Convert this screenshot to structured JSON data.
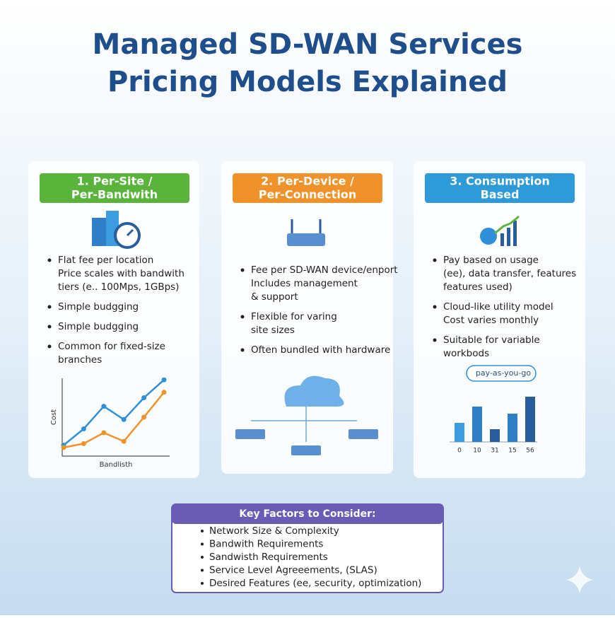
{
  "header": {
    "title_lines": [
      "Managed SD-WAN Services",
      "Pricing Models Explained"
    ]
  },
  "cards": [
    {
      "title_lines": [
        "1. Per-Site /",
        "Per-Bandwith"
      ],
      "color": "#5ab43c",
      "bullets": [
        [
          "Flat fee per location",
          "Price scales with bandwith",
          "tiers (e.. 100Mps, 1GBps)"
        ],
        [
          "Simple budgging"
        ],
        [
          "Simple budgging"
        ],
        [
          "Common for fixed-size",
          "branches"
        ]
      ],
      "chart": {
        "type": "line",
        "xlabel": "Bandlisth",
        "ylabel": "Cost",
        "ylim": [
          0,
          10
        ],
        "series": [
          {
            "color": "#2f8fd8",
            "values": [
              1.4,
              3.5,
              6.4,
              4.7,
              7.5,
              9.8
            ]
          },
          {
            "color": "#f0922a",
            "values": [
              1.1,
              1.6,
              3,
              1.9,
              5,
              8.2
            ]
          }
        ]
      }
    },
    {
      "title_lines": [
        "2. Per-Device /",
        "Per-Connection"
      ],
      "color": "#f0922a",
      "bullets": [
        [
          "Fee per SD-WAN device/enport",
          "Includes management",
          "& support"
        ],
        [
          "Flexible for varing",
          "site sizes"
        ],
        [
          "Often bundled with hardware"
        ]
      ]
    },
    {
      "title_lines": [
        "3. Consumption",
        "Based"
      ],
      "color": "#2f9ad8",
      "bullets": [
        [
          "Pay based on usage",
          "(ee), data transfer, features",
          "features used)"
        ],
        [
          "Cloud-like utility model",
          "Cost varies monthly"
        ],
        [
          "Suitable for variable",
          "workbods"
        ]
      ],
      "badge": "pay-as-you-go",
      "chart": {
        "type": "bar",
        "categories": [
          "0",
          "10",
          "31",
          "15",
          "56"
        ],
        "values": [
          27,
          50,
          18,
          40,
          64
        ],
        "ylim": [
          0,
          70
        ],
        "colors": [
          "#3d9be0",
          "#2f7fc8",
          "#2a5d9e",
          "#2f7fc8",
          "#2a5d9e"
        ]
      }
    }
  ],
  "key_factors": {
    "title": "Key Factors to Consider:",
    "items": [
      "Network Size & Complexity",
      "Bandwith Requirements",
      "Sandwisth Requirements",
      "Service Level Agreeements, (SLAS)",
      "Desired Features (ee, security, optimization)"
    ]
  }
}
